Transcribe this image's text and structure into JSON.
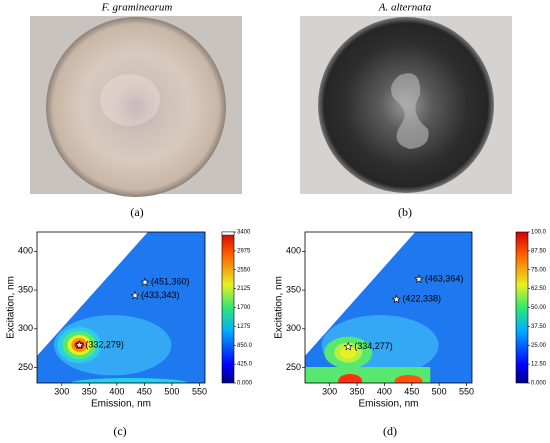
{
  "photos": [
    {
      "title": "F. graminearum",
      "caption": "(a)"
    },
    {
      "title": "A. alternata",
      "caption": "(b)"
    }
  ],
  "chart_data": [
    {
      "type": "contour",
      "caption": "(c)",
      "xlabel": "Emission, nm",
      "ylabel": "Excitation, nm",
      "xlim": [
        255,
        560
      ],
      "ylim": [
        230,
        425
      ],
      "xticks": [
        300,
        350,
        400,
        450,
        500,
        550
      ],
      "yticks": [
        250,
        300,
        350,
        400
      ],
      "x": [
        332,
        433,
        451
      ],
      "values": [
        279,
        343,
        360
      ],
      "value_labels": [
        "(332,279)",
        "(433,343)",
        "(451,360)"
      ],
      "colorbar_lim": [
        0,
        3400
      ],
      "colorbar_ticks": [
        {
          "value": 0,
          "label": "0.000"
        },
        {
          "value": 425,
          "label": "425.0"
        },
        {
          "value": 850,
          "label": "850.0"
        },
        1275,
        1700,
        2125,
        2550,
        2975,
        3400
      ]
    },
    {
      "type": "contour",
      "caption": "(d)",
      "xlabel": "Emission, nm",
      "ylabel": "Excitation, nm",
      "xlim": [
        255,
        560
      ],
      "ylim": [
        230,
        425
      ],
      "xticks": [
        300,
        350,
        400,
        450,
        500,
        550
      ],
      "yticks": [
        250,
        300,
        350,
        400
      ],
      "x": [
        334,
        422,
        463
      ],
      "values": [
        277,
        338,
        364
      ],
      "value_labels": [
        "(334,277)",
        "(422,338)",
        "(463,364)"
      ],
      "colorbar_lim": [
        0,
        100
      ],
      "colorbar_ticks": [
        {
          "value": 0,
          "label": "0.000"
        },
        {
          "value": 12.5,
          "label": "12.50"
        },
        {
          "value": 25,
          "label": "25.00"
        },
        {
          "value": 37.5,
          "label": "37.50"
        },
        {
          "value": 50,
          "label": "50.00"
        },
        {
          "value": 62.5,
          "label": "62.50"
        },
        {
          "value": 75,
          "label": "75.00"
        },
        {
          "value": 87.5,
          "label": "87.50"
        },
        {
          "value": 100,
          "label": "100.0"
        }
      ]
    }
  ]
}
